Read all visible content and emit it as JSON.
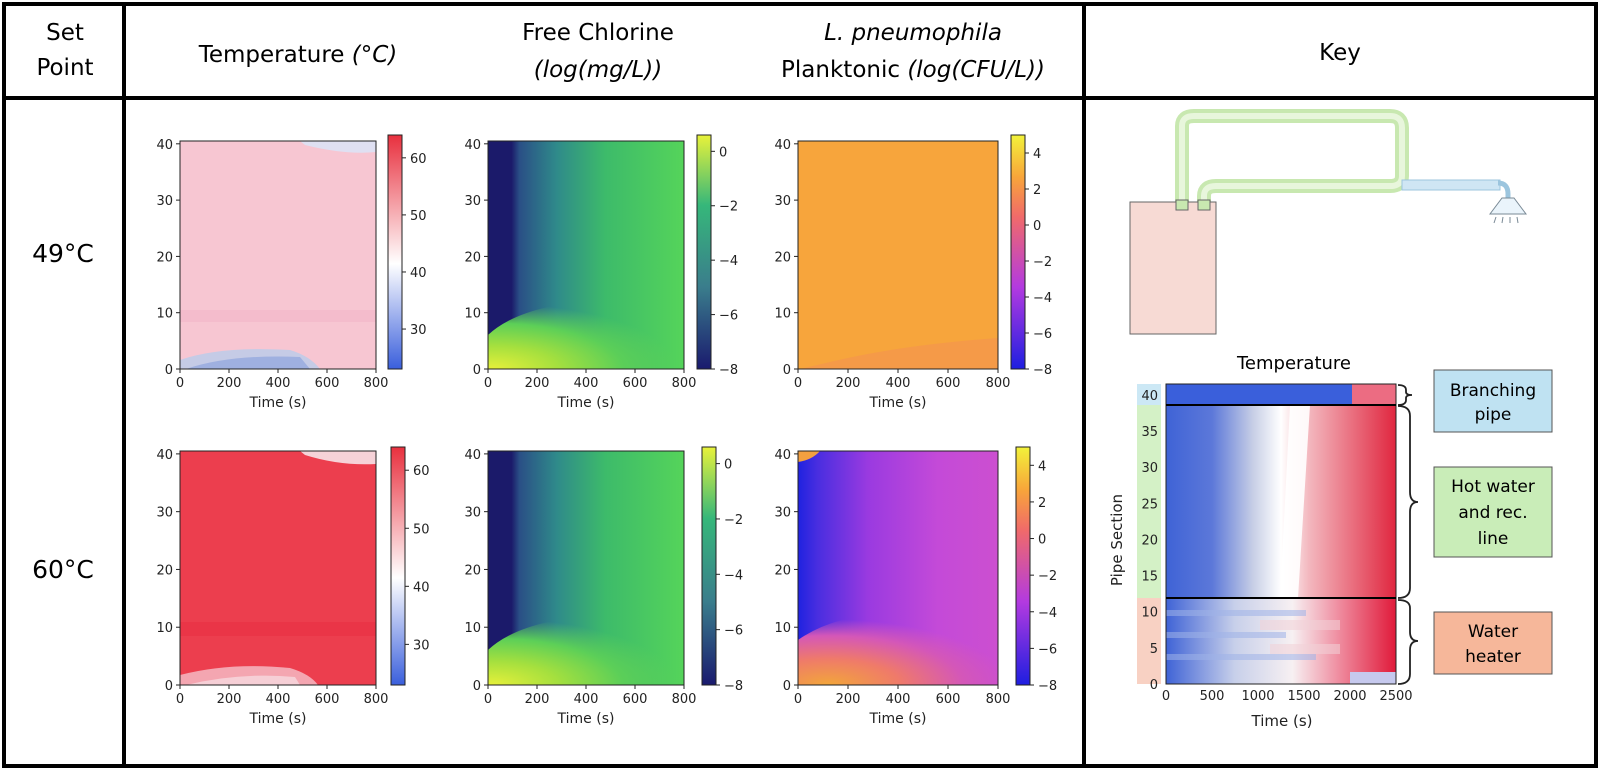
{
  "header": {
    "col1_line1": "Set",
    "col1_line2": "Point",
    "col2": "Temperature ",
    "col2_unit": "(°C)",
    "col3_line1": "Free Chlorine",
    "col3_line2": "(log(mg/L))",
    "col4_line1": "L. pneumophila",
    "col4_line2": "Planktonic ",
    "col4_unit": "(log(CFU/L))",
    "col5": "Key"
  },
  "rows": [
    "49°C",
    "60°C"
  ],
  "panel_axes": {
    "xlabel": "Time (s)",
    "xticks": [
      "0",
      "200",
      "400",
      "600",
      "800"
    ],
    "yticks": [
      "0",
      "10",
      "20",
      "30",
      "40"
    ]
  },
  "colorbars": {
    "temperature": {
      "ticks": [
        "30",
        "40",
        "50",
        "60"
      ],
      "colors": [
        "#3a5fdc",
        "#ffffff",
        "#e8303e"
      ]
    },
    "chlorine": {
      "ticks": [
        "−8",
        "−6",
        "−4",
        "−2",
        "0"
      ],
      "colors": [
        "#1a1a6e",
        "#3a7d8c",
        "#36b77a",
        "#e8f23a"
      ]
    },
    "legionella": {
      "ticks": [
        "−8",
        "−6",
        "−4",
        "−2",
        "0",
        "2",
        "4"
      ],
      "colors": [
        "#1e1ee0",
        "#b33ae0",
        "#f06a6a",
        "#f8a53a",
        "#f2f23a"
      ]
    }
  },
  "key": {
    "title": "Temperature",
    "xlabel": "Time (s)",
    "ylabel": "Pipe Section",
    "xticks": [
      "0",
      "500",
      "1000",
      "1500",
      "2000",
      "2500"
    ],
    "yticks": [
      "0",
      "5",
      "10",
      "15",
      "20",
      "25",
      "30",
      "35",
      "40"
    ],
    "labels": {
      "branching_1": "Branching",
      "branching_2": "pipe",
      "hotwater_1": "Hot water",
      "hotwater_2": "and rec.",
      "hotwater_3": "line",
      "heater_1": "Water",
      "heater_2": "heater"
    },
    "label_colors": {
      "branching": "#bfe2f2",
      "hotwater": "#c9edb8",
      "heater": "#f6b79a"
    }
  },
  "chart_data": [
    {
      "type": "heatmap",
      "variable": "Temperature",
      "set_point": "49°C",
      "x_range": [
        0,
        800
      ],
      "y_range": [
        0,
        40
      ],
      "color_range": [
        25,
        64
      ],
      "cbar_ticks": [
        30,
        40,
        50,
        60
      ],
      "approx_value": 49
    },
    {
      "type": "heatmap",
      "variable": "Free Chlorine",
      "set_point": "49°C",
      "x_range": [
        0,
        800
      ],
      "y_range": [
        0,
        40
      ],
      "color_range": [
        -8,
        0.5
      ],
      "cbar_ticks": [
        -8,
        -6,
        -4,
        -2,
        0
      ]
    },
    {
      "type": "heatmap",
      "variable": "L. pneumophila Planktonic",
      "set_point": "49°C",
      "x_range": [
        0,
        800
      ],
      "y_range": [
        0,
        40
      ],
      "color_range": [
        -8,
        5
      ],
      "cbar_ticks": [
        -8,
        -6,
        -4,
        -2,
        0,
        2,
        4
      ],
      "approx_value": 2.3
    },
    {
      "type": "heatmap",
      "variable": "Temperature",
      "set_point": "60°C",
      "x_range": [
        0,
        800
      ],
      "y_range": [
        0,
        40
      ],
      "color_range": [
        25,
        64
      ],
      "cbar_ticks": [
        30,
        40,
        50,
        60
      ],
      "approx_value": 60
    },
    {
      "type": "heatmap",
      "variable": "Free Chlorine",
      "set_point": "60°C",
      "x_range": [
        0,
        800
      ],
      "y_range": [
        0,
        40
      ],
      "color_range": [
        -8,
        0.5
      ],
      "cbar_ticks": [
        -8,
        -6,
        -4,
        -2,
        0
      ]
    },
    {
      "type": "heatmap",
      "variable": "L. pneumophila Planktonic",
      "set_point": "60°C",
      "x_range": [
        0,
        800
      ],
      "y_range": [
        0,
        40
      ],
      "color_range": [
        -8,
        5
      ],
      "cbar_ticks": [
        -8,
        -6,
        -4,
        -2,
        0,
        2,
        4
      ]
    },
    {
      "type": "heatmap",
      "variable": "Temperature",
      "title": "Temperature",
      "x_range": [
        0,
        2500
      ],
      "y_range": [
        0,
        40
      ],
      "xlabel": "Time (s)",
      "ylabel": "Pipe Section"
    }
  ]
}
